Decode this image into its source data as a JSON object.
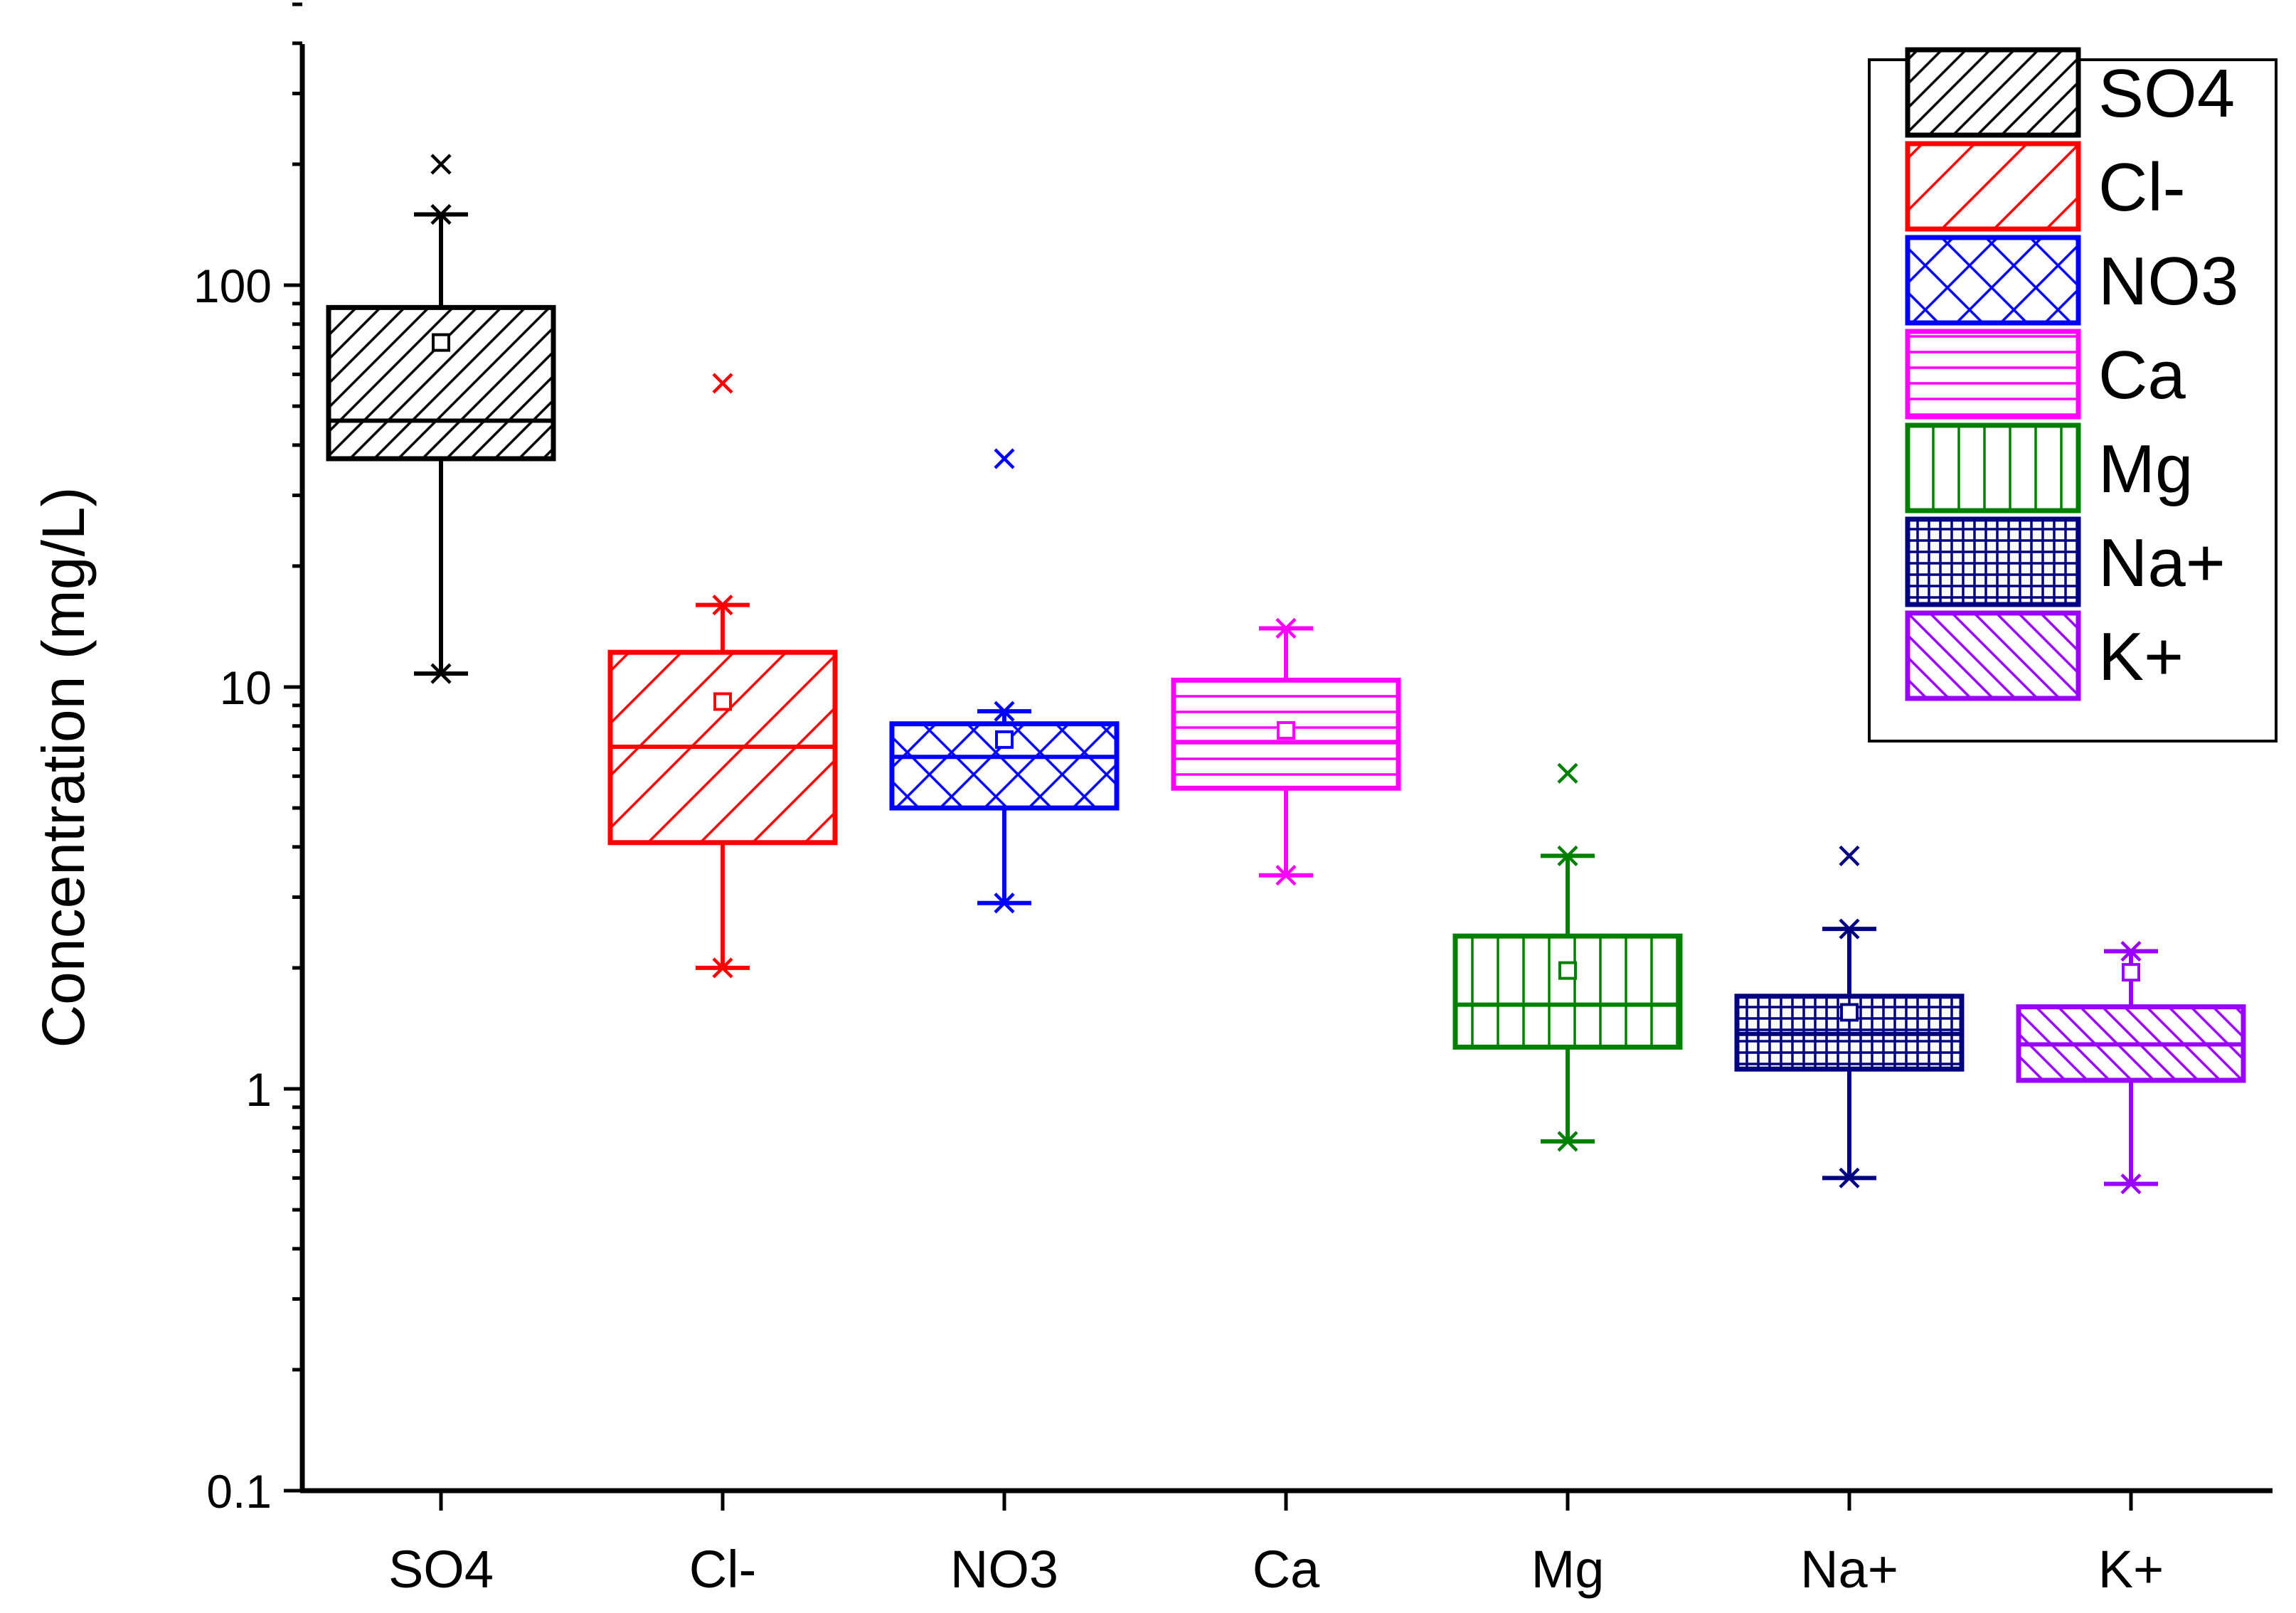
{
  "chart_data": {
    "type": "box",
    "title": "",
    "xlabel": "",
    "ylabel": "Concentration (mg/L)",
    "yscale": "log",
    "ylim": [
      0.1,
      500
    ],
    "yticks": [
      0.1,
      1,
      10,
      100
    ],
    "ytick_labels": [
      "0.1",
      "1",
      "10",
      "100"
    ],
    "legend_position": "top-right",
    "categories": [
      "SO4",
      "Cl-",
      "NO3",
      "Ca",
      "Mg",
      "Na+",
      "K+"
    ],
    "series": [
      {
        "name": "SO4",
        "color": "#000000",
        "pattern": "diagonal-up",
        "whisker_low": 10.8,
        "q1": 37,
        "median": 46,
        "q3": 88,
        "whisker_high": 150,
        "mean": 72,
        "min": 10.8,
        "max": 150,
        "outliers": [
          200
        ]
      },
      {
        "name": "Cl-",
        "color": "#ff0000",
        "pattern": "diagonal-up-wide",
        "whisker_low": 2.0,
        "q1": 4.1,
        "median": 7.1,
        "q3": 12.2,
        "whisker_high": 16,
        "mean": 9.2,
        "min": 2.0,
        "max": 16,
        "outliers": [
          57
        ]
      },
      {
        "name": "NO3",
        "color": "#0000ff",
        "pattern": "crosshatch-diagonal",
        "whisker_low": 2.9,
        "q1": 5.0,
        "median": 6.7,
        "q3": 8.1,
        "whisker_high": 8.7,
        "mean": 7.4,
        "min": 2.9,
        "max": 8.7,
        "outliers": [
          37
        ]
      },
      {
        "name": "Ca",
        "color": "#ff00ff",
        "pattern": "horizontal",
        "whisker_low": 3.4,
        "q1": 5.6,
        "median": 7.3,
        "q3": 10.4,
        "whisker_high": 14,
        "mean": 7.8,
        "min": 3.4,
        "max": 14,
        "outliers": []
      },
      {
        "name": "Mg",
        "color": "#008000",
        "pattern": "vertical",
        "whisker_low": 0.74,
        "q1": 1.27,
        "median": 1.62,
        "q3": 2.4,
        "whisker_high": 3.8,
        "mean": 1.97,
        "min": 0.74,
        "max": 3.8,
        "outliers": [
          6.1
        ]
      },
      {
        "name": "Na+",
        "color": "#000080",
        "pattern": "grid",
        "whisker_low": 0.6,
        "q1": 1.12,
        "median": 1.37,
        "q3": 1.7,
        "whisker_high": 2.5,
        "mean": 1.55,
        "min": 0.6,
        "max": 2.5,
        "outliers": [
          3.8
        ]
      },
      {
        "name": "K+",
        "color": "#9900ff",
        "pattern": "diagonal-down",
        "whisker_low": 0.58,
        "q1": 1.05,
        "median": 1.29,
        "q3": 1.6,
        "whisker_high": 2.2,
        "mean": 1.95,
        "min": 0.58,
        "max": 2.2,
        "outliers": []
      }
    ]
  }
}
